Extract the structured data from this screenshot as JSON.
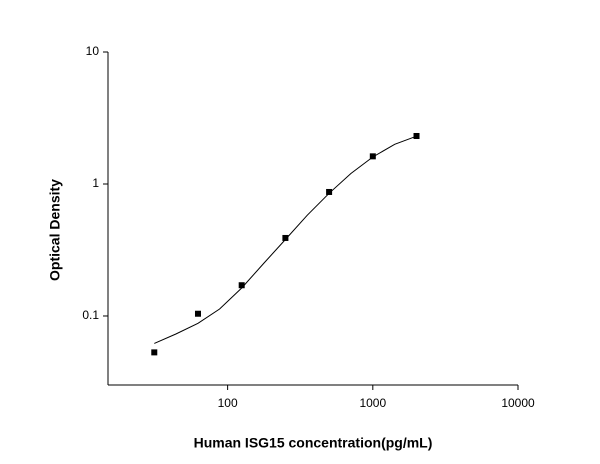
{
  "chart_data": {
    "type": "scatter",
    "x_label": "Human ISG15 concentration(pg/mL)",
    "y_label": "Optical Density",
    "xscale": "log",
    "yscale": "log",
    "xlim": [
      15,
      10000
    ],
    "ylim": [
      0.03,
      10
    ],
    "xticks": [
      100,
      1000,
      10000
    ],
    "yticks": [
      0.1,
      1,
      10
    ],
    "series": [
      {
        "style": "markers",
        "color": "#000000",
        "x": [
          31.25,
          62.5,
          125,
          250,
          500,
          1000,
          2000
        ],
        "values": [
          0.053,
          0.104,
          0.171,
          0.39,
          0.87,
          1.62,
          2.31
        ]
      },
      {
        "style": "line",
        "color": "#000000",
        "x": [
          31.25,
          44,
          62.5,
          88,
          125,
          177,
          250,
          354,
          500,
          707,
          1000,
          1414,
          2000
        ],
        "values": [
          0.062,
          0.073,
          0.088,
          0.113,
          0.163,
          0.25,
          0.38,
          0.58,
          0.85,
          1.2,
          1.6,
          2.0,
          2.3
        ]
      }
    ]
  }
}
